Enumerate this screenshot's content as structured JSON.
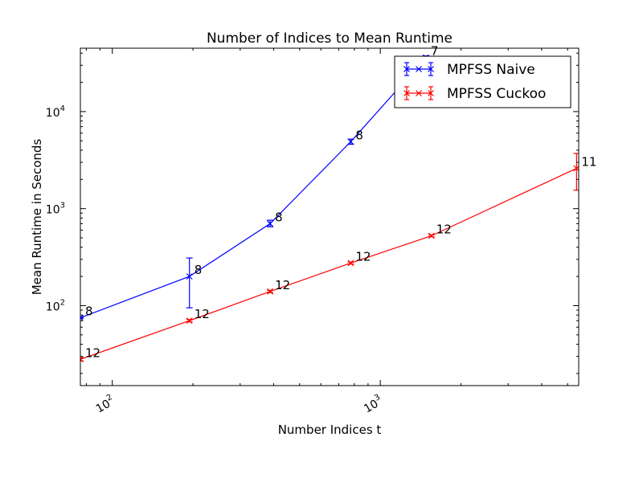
{
  "chart_data": {
    "type": "line",
    "title": "Number of Indices to Mean Runtime",
    "xlabel": "Number Indices t",
    "ylabel": "Mean Runtime in Seconds",
    "xscale": "log",
    "yscale": "log",
    "xlim": [
      76,
      5500
    ],
    "ylim": [
      15,
      45000
    ],
    "x_ticks": [
      {
        "value": 100,
        "base": "10",
        "exp": "2"
      },
      {
        "value": 1000,
        "base": "10",
        "exp": "3"
      }
    ],
    "y_ticks": [
      {
        "value": 100,
        "base": "10",
        "exp": "2"
      },
      {
        "value": 1000,
        "base": "10",
        "exp": "3"
      },
      {
        "value": 10000,
        "base": "10",
        "exp": "4"
      }
    ],
    "grid": false,
    "legend_position": "top-right",
    "series": [
      {
        "name": "MPFSS Naive",
        "color": "#0000ff",
        "marker": "x",
        "points": [
          {
            "x": 76,
            "y": 75,
            "err": [
              74,
              76
            ],
            "label": "8"
          },
          {
            "x": 194,
            "y": 200,
            "err": [
              95,
              310
            ],
            "label": "8"
          },
          {
            "x": 388,
            "y": 700,
            "err": [
              650,
              760
            ],
            "label": "8"
          },
          {
            "x": 776,
            "y": 4900,
            "err": [
              4600,
              5200
            ],
            "label": "8"
          },
          {
            "x": 1480,
            "y": 36000,
            "err": [
              35000,
              37500
            ],
            "label": "7"
          }
        ]
      },
      {
        "name": "MPFSS Cuckoo",
        "color": "#ff0000",
        "marker": "x",
        "points": [
          {
            "x": 76,
            "y": 28,
            "err": [
              27,
              29
            ],
            "label": "12"
          },
          {
            "x": 194,
            "y": 70,
            "err": [
              68,
              72
            ],
            "label": "12"
          },
          {
            "x": 388,
            "y": 140,
            "err": [
              136,
              144
            ],
            "label": "12"
          },
          {
            "x": 776,
            "y": 275,
            "err": [
              268,
              282
            ],
            "label": "12"
          },
          {
            "x": 1552,
            "y": 525,
            "err": [
              512,
              538
            ],
            "label": "12"
          },
          {
            "x": 5400,
            "y": 2600,
            "err": [
              1550,
              3700
            ],
            "label": "11"
          }
        ]
      }
    ]
  }
}
